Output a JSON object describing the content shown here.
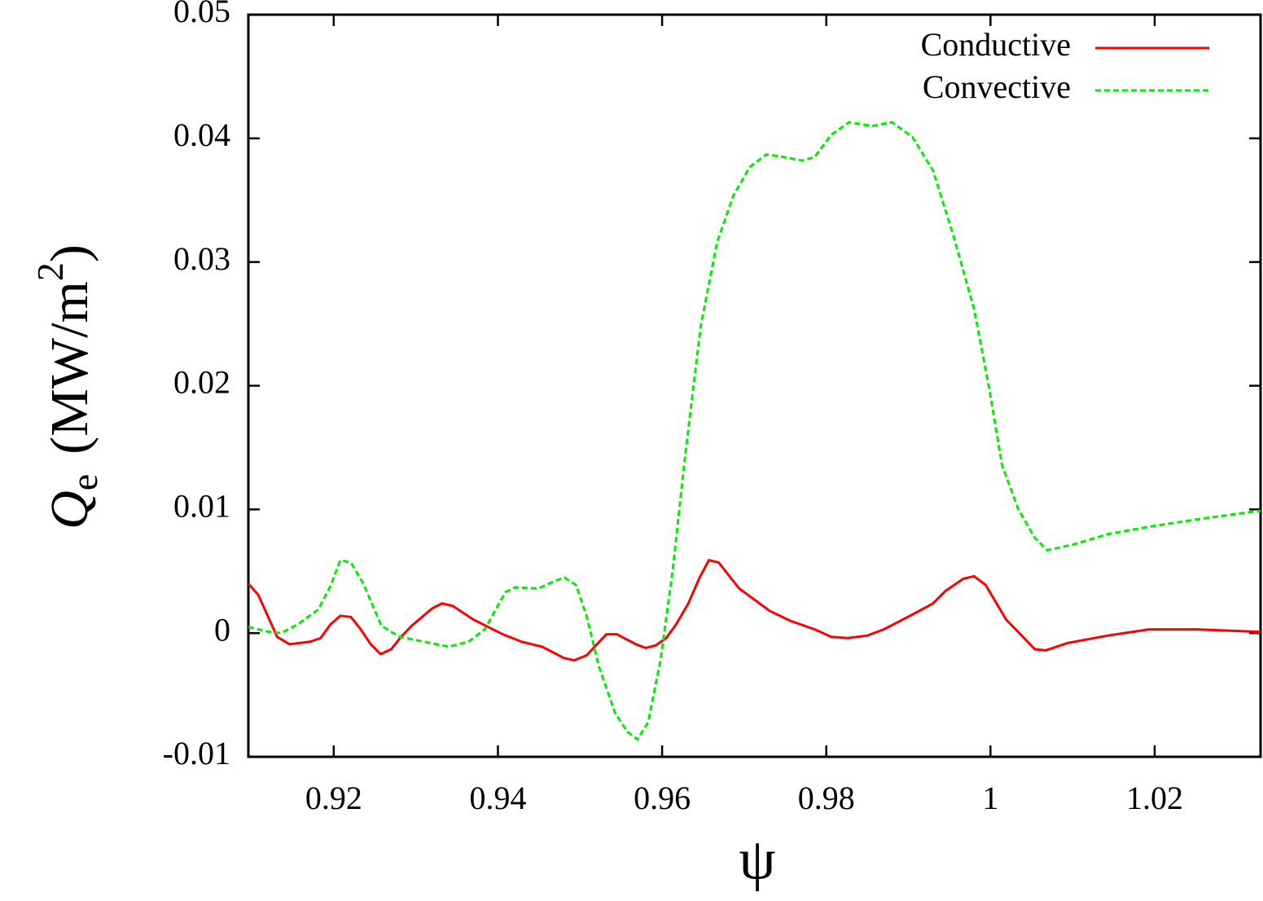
{
  "chart_data": {
    "type": "line",
    "xlabel": "ψ",
    "ylabel": {
      "main": "Q",
      "sub": "e",
      "unit": "(MW/m",
      "sup": "2",
      "close": ")"
    },
    "xlim": [
      0.9096,
      1.0329
    ],
    "ylim": [
      -0.01,
      0.05
    ],
    "xticks": [
      0.92,
      0.94,
      0.96,
      0.98,
      1,
      1.02
    ],
    "yticks": [
      -0.01,
      0,
      0.01,
      0.02,
      0.03,
      0.04,
      0.05
    ],
    "legend": "upper right",
    "series": [
      {
        "name": "Conductive",
        "color": "#ff0000",
        "line_style": "solid",
        "x": [
          0.9096,
          0.9108,
          0.9131,
          0.9146,
          0.9171,
          0.9184,
          0.9196,
          0.9208,
          0.9221,
          0.9233,
          0.9245,
          0.9257,
          0.927,
          0.9282,
          0.9295,
          0.932,
          0.9332,
          0.9345,
          0.937,
          0.9406,
          0.9429,
          0.9454,
          0.948,
          0.9493,
          0.9508,
          0.9532,
          0.9545,
          0.9568,
          0.958,
          0.9592,
          0.9605,
          0.9617,
          0.9632,
          0.9645,
          0.9657,
          0.9669,
          0.9682,
          0.9694,
          0.9731,
          0.9756,
          0.9786,
          0.9806,
          0.9826,
          0.985,
          0.987,
          0.9905,
          0.993,
          0.9945,
          0.9967,
          0.998,
          0.9994,
          1.0019,
          1.0054,
          1.0067,
          1.0094,
          1.0143,
          1.0193,
          1.0252,
          1.0329
        ],
        "values": [
          0.004,
          0.0031,
          -0.0003,
          -0.0009,
          -0.0007,
          -0.0004,
          0.0007,
          0.0014,
          0.0013,
          0.0003,
          -0.0009,
          -0.0017,
          -0.0013,
          -0.0003,
          0.0006,
          0.002,
          0.0024,
          0.0022,
          0.0011,
          -0.0001,
          -0.0007,
          -0.0011,
          -0.002,
          -0.0022,
          -0.0018,
          -0.0001,
          -0.0001,
          -0.0009,
          -0.0012,
          -0.001,
          -0.0004,
          0.0007,
          0.0024,
          0.0044,
          0.0059,
          0.0057,
          0.0046,
          0.0036,
          0.0018,
          0.001,
          0.0003,
          -0.0003,
          -0.0004,
          -0.0002,
          0.0003,
          0.0015,
          0.0024,
          0.0034,
          0.0044,
          0.0046,
          0.0039,
          0.0011,
          -0.0013,
          -0.0014,
          -0.0008,
          -0.0002,
          0.0003,
          0.0003,
          0.0001
        ]
      },
      {
        "name": "Convective",
        "color": "#00ee00",
        "line_style": "dashed",
        "x": [
          0.9096,
          0.9121,
          0.9136,
          0.9156,
          0.9181,
          0.9196,
          0.9208,
          0.9221,
          0.9236,
          0.9258,
          0.928,
          0.931,
          0.934,
          0.9364,
          0.9384,
          0.9409,
          0.9421,
          0.9449,
          0.9469,
          0.9481,
          0.9495,
          0.9508,
          0.9523,
          0.9543,
          0.9558,
          0.957,
          0.9583,
          0.9598,
          0.9613,
          0.9628,
          0.9647,
          0.9667,
          0.9687,
          0.9707,
          0.9727,
          0.9747,
          0.9771,
          0.9786,
          0.9806,
          0.9828,
          0.9856,
          0.988,
          0.9905,
          0.993,
          0.9955,
          0.998,
          0.9999,
          1.0014,
          1.0034,
          1.0054,
          1.0069,
          1.0103,
          1.0143,
          1.0193,
          1.0252,
          1.0329
        ],
        "values": [
          0.0005,
          0.0001,
          0,
          0.0007,
          0.0019,
          0.0038,
          0.0059,
          0.0057,
          0.004,
          0.0006,
          -0.0003,
          -0.0007,
          -0.0011,
          -0.0007,
          0.0003,
          0.0033,
          0.0037,
          0.0036,
          0.0042,
          0.0045,
          0.0039,
          0.0014,
          -0.0027,
          -0.0065,
          -0.008,
          -0.0086,
          -0.0072,
          -0.0022,
          0.0051,
          0.0143,
          0.0248,
          0.0316,
          0.0354,
          0.0377,
          0.0387,
          0.0385,
          0.0382,
          0.0385,
          0.0403,
          0.0413,
          0.041,
          0.0413,
          0.0401,
          0.0374,
          0.0321,
          0.0262,
          0.0196,
          0.0136,
          0.01,
          0.0077,
          0.0067,
          0.0072,
          0.008,
          0.0086,
          0.0092,
          0.0099
        ]
      }
    ]
  }
}
